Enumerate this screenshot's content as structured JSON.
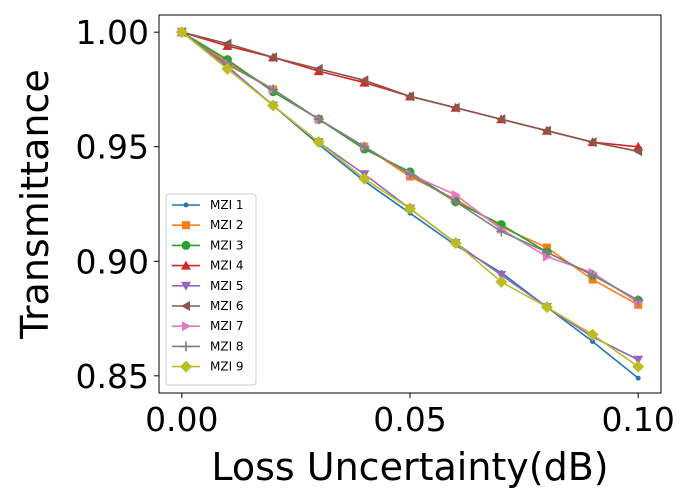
{
  "chart_data": {
    "type": "line",
    "xlabel": "Loss Uncertainty(dB)",
    "ylabel": "Transmittance",
    "xlim": [
      -0.005,
      0.105
    ],
    "ylim": [
      0.8425,
      1.0075
    ],
    "xticks": [
      0.0,
      0.05,
      0.1
    ],
    "xtick_labels": [
      "0.00",
      "0.05",
      "0.10"
    ],
    "yticks": [
      0.85,
      0.9,
      0.95,
      1.0
    ],
    "ytick_labels": [
      "0.85",
      "0.90",
      "0.95",
      "1.00"
    ],
    "grid": false,
    "legend_position": "lower-left",
    "x": [
      0.0,
      0.01,
      0.02,
      0.03,
      0.04,
      0.05,
      0.06,
      0.07,
      0.08,
      0.09,
      0.1
    ],
    "series": [
      {
        "name": "MZI 1",
        "color": "#1f77b4",
        "marker": "point",
        "values": [
          1.0,
          0.985,
          0.968,
          0.951,
          0.935,
          0.921,
          0.907,
          0.895,
          0.88,
          0.865,
          0.849
        ]
      },
      {
        "name": "MZI 2",
        "color": "#ff7f0e",
        "marker": "square",
        "values": [
          1.0,
          0.987,
          0.975,
          0.962,
          0.95,
          0.937,
          0.927,
          0.915,
          0.906,
          0.892,
          0.881
        ]
      },
      {
        "name": "MZI 3",
        "color": "#2ca02c",
        "marker": "circle",
        "values": [
          1.0,
          0.988,
          0.974,
          0.962,
          0.949,
          0.939,
          0.926,
          0.916,
          0.904,
          0.894,
          0.883
        ]
      },
      {
        "name": "MZI 4",
        "color": "#d62728",
        "marker": "triangle-up",
        "values": [
          1.0,
          0.994,
          0.989,
          0.983,
          0.978,
          0.972,
          0.967,
          0.962,
          0.957,
          0.952,
          0.95
        ]
      },
      {
        "name": "MZI 5",
        "color": "#9467bd",
        "marker": "triangle-down",
        "values": [
          1.0,
          0.985,
          0.968,
          0.952,
          0.938,
          0.923,
          0.908,
          0.894,
          0.88,
          0.867,
          0.857
        ]
      },
      {
        "name": "MZI 6",
        "color": "#8c564b",
        "marker": "triangle-left",
        "values": [
          1.0,
          0.995,
          0.989,
          0.984,
          0.979,
          0.972,
          0.967,
          0.962,
          0.957,
          0.952,
          0.948
        ]
      },
      {
        "name": "MZI 7",
        "color": "#e377c2",
        "marker": "triangle-right",
        "values": [
          1.0,
          0.986,
          0.975,
          0.962,
          0.95,
          0.938,
          0.929,
          0.914,
          0.902,
          0.895,
          0.882
        ]
      },
      {
        "name": "MZI 8",
        "color": "#7f7f7f",
        "marker": "plus",
        "values": [
          1.0,
          0.986,
          0.975,
          0.962,
          0.95,
          0.938,
          0.926,
          0.913,
          0.904,
          0.894,
          0.883
        ]
      },
      {
        "name": "MZI 9",
        "color": "#bcbd22",
        "marker": "diamond",
        "values": [
          1.0,
          0.984,
          0.968,
          0.952,
          0.936,
          0.923,
          0.908,
          0.891,
          0.88,
          0.868,
          0.854
        ]
      }
    ]
  }
}
